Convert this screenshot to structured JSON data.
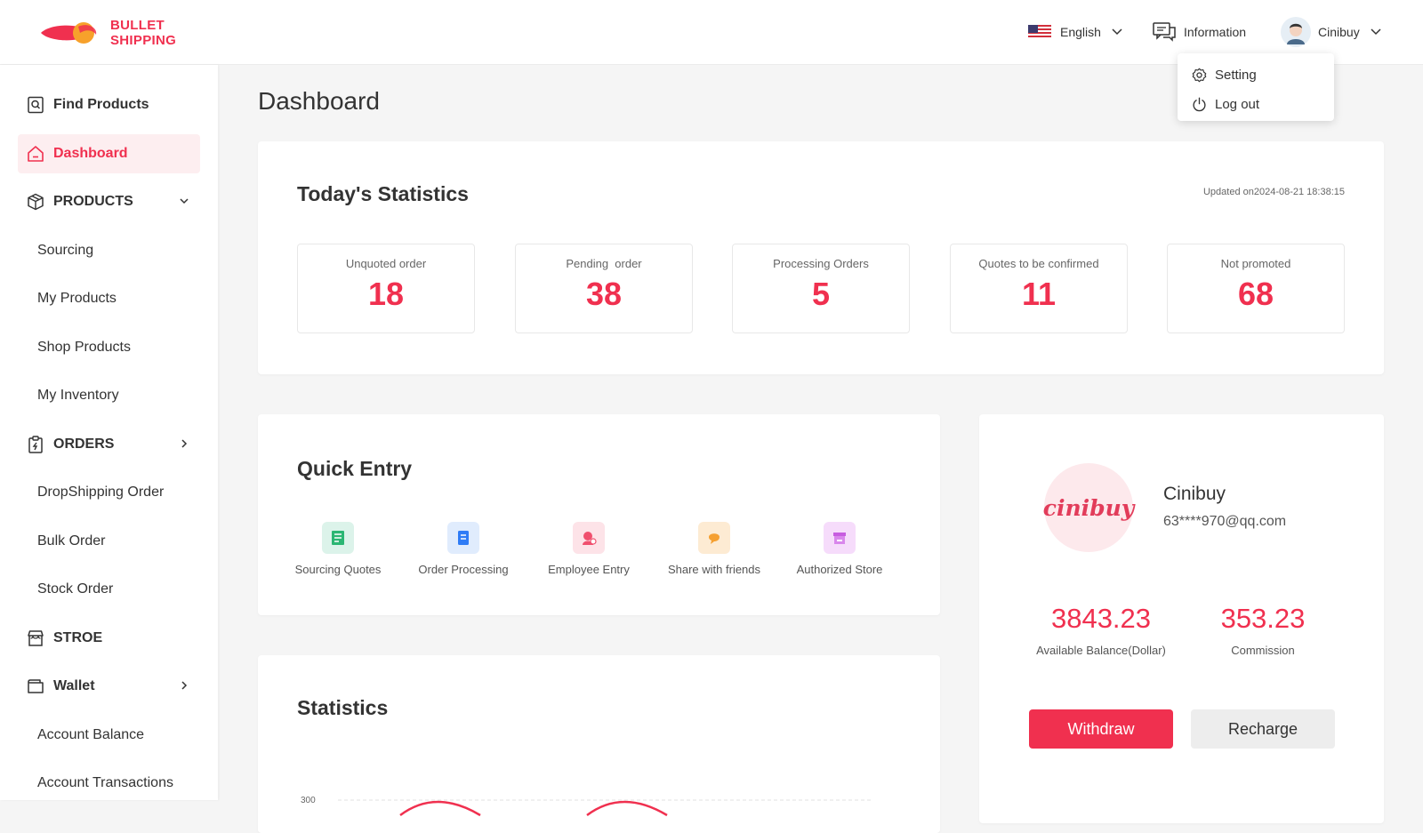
{
  "header": {
    "logo_line1": "BULLET",
    "logo_line2": "SHIPPING",
    "language": "English",
    "information": "Information",
    "username": "Cinibuy"
  },
  "user_menu": {
    "items": [
      {
        "label": "Setting",
        "icon": "gear-icon"
      },
      {
        "label": "Log out",
        "icon": "power-icon"
      }
    ]
  },
  "sidebar": {
    "items": [
      {
        "label": "Find Products",
        "type": "top",
        "icon": "search-doc-icon"
      },
      {
        "label": "Dashboard",
        "type": "top",
        "icon": "home-icon",
        "active": true
      },
      {
        "label": "PRODUCTS",
        "type": "top",
        "icon": "box-icon",
        "expanded": true
      },
      {
        "label": "Sourcing",
        "type": "sub"
      },
      {
        "label": "My Products",
        "type": "sub"
      },
      {
        "label": "Shop Products",
        "type": "sub"
      },
      {
        "label": "My Inventory",
        "type": "sub"
      },
      {
        "label": "ORDERS",
        "type": "top",
        "icon": "clipboard-icon"
      },
      {
        "label": "DropShipping Order",
        "type": "sub"
      },
      {
        "label": "Bulk Order",
        "type": "sub"
      },
      {
        "label": "Stock Order",
        "type": "sub"
      },
      {
        "label": "STROE",
        "type": "top",
        "icon": "store-icon"
      },
      {
        "label": "Wallet",
        "type": "top",
        "icon": "wallet-icon"
      },
      {
        "label": "Account Balance",
        "type": "sub"
      },
      {
        "label": "Account Transactions",
        "type": "sub"
      }
    ]
  },
  "main": {
    "title": "Dashboard",
    "today": {
      "title": "Today's Statistics",
      "updated": "Updated on2024-08-21 18:38:15",
      "stats": [
        {
          "label": "Unquoted order",
          "value": "18"
        },
        {
          "label": "Pending  order",
          "value": "38"
        },
        {
          "label": "Processing Orders",
          "value": "5"
        },
        {
          "label": "Quotes to be confirmed",
          "value": "11"
        },
        {
          "label": "Not promoted",
          "value": "68"
        }
      ]
    },
    "quick_entry": {
      "title": "Quick Entry",
      "items": [
        {
          "label": "Sourcing Quotes",
          "icon": "document-icon",
          "color": "#2bb673"
        },
        {
          "label": "Order Processing",
          "icon": "notebook-icon",
          "color": "#2f7cf6"
        },
        {
          "label": "Employee Entry",
          "icon": "employee-icon",
          "color": "#f0506e"
        },
        {
          "label": "Share with friends",
          "icon": "share-icon",
          "color": "#f5a031"
        },
        {
          "label": "Authorized Store",
          "icon": "store-icon",
          "color": "#c75ce0"
        }
      ]
    },
    "statistics": {
      "title": "Statistics",
      "y_tick": "300"
    },
    "profile": {
      "avatar_text": "cinibuy",
      "name": "Cinibuy",
      "email": "63****970@qq.com",
      "balance_value": "3843.23",
      "balance_label": "Available Balance(Dollar)",
      "commission_value": "353.23",
      "commission_label": "Commission",
      "withdraw_label": "Withdraw",
      "recharge_label": "Recharge"
    }
  },
  "colors": {
    "accent": "#f0304f",
    "active_bg": "#fdeef0"
  }
}
